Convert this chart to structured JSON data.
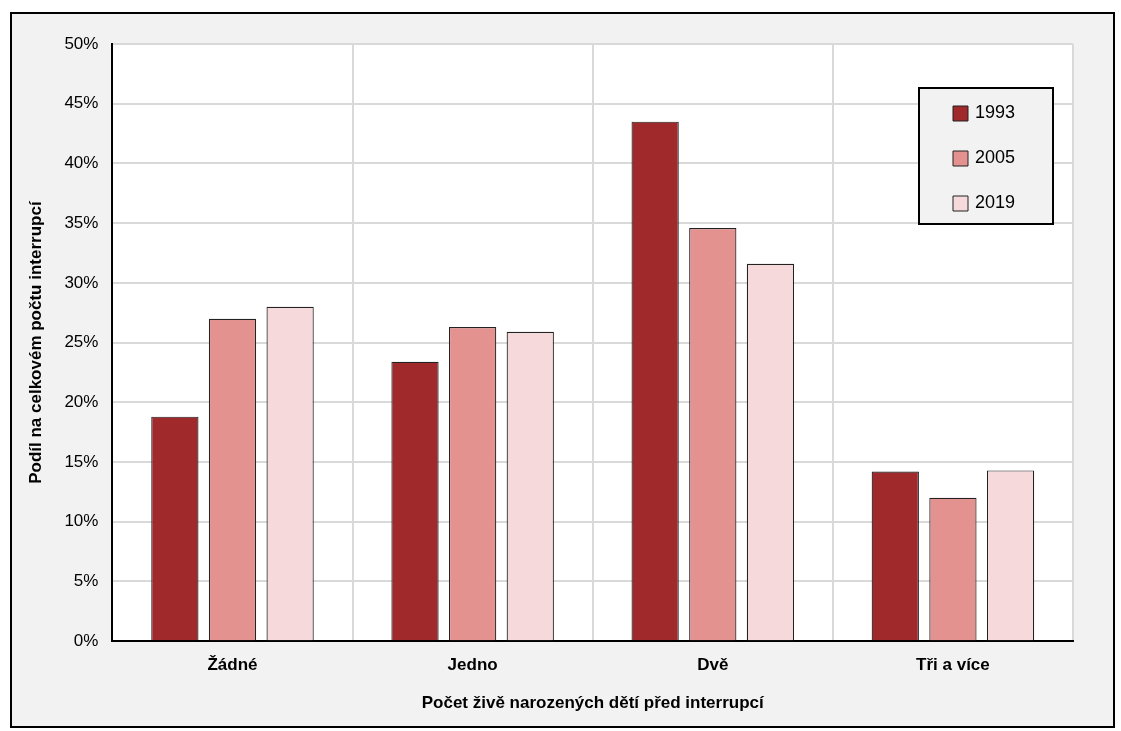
{
  "chart_data": {
    "type": "bar",
    "xlabel": "Počet živě narozených dětí před interrupcí",
    "ylabel": "Podíl na celkovém počtu interrupcí",
    "categories": [
      "Žádné",
      "Jedno",
      "Dvě",
      "Tři a více"
    ],
    "series": [
      {
        "name": "1993",
        "color": "#a0292b",
        "values": [
          18.8,
          23.4,
          43.5,
          14.2
        ]
      },
      {
        "name": "2005",
        "color": "#e3928f",
        "values": [
          27.0,
          26.3,
          34.6,
          12.0
        ]
      },
      {
        "name": "2019",
        "color": "#f6dadb",
        "values": [
          28.0,
          25.9,
          31.6,
          14.3
        ]
      }
    ],
    "ylim": [
      0,
      50
    ],
    "yticks": [
      {
        "value": 0,
        "label": "0%"
      },
      {
        "value": 5,
        "label": "5%"
      },
      {
        "value": 10,
        "label": "10%"
      },
      {
        "value": 15,
        "label": "15%"
      },
      {
        "value": 20,
        "label": "20%"
      },
      {
        "value": 25,
        "label": "25%"
      },
      {
        "value": 30,
        "label": "30%"
      },
      {
        "value": 35,
        "label": "35%"
      },
      {
        "value": 40,
        "label": "40%"
      },
      {
        "value": 45,
        "label": "45%"
      },
      {
        "value": 50,
        "label": "50%"
      }
    ],
    "grid": true,
    "legend": "top right"
  }
}
